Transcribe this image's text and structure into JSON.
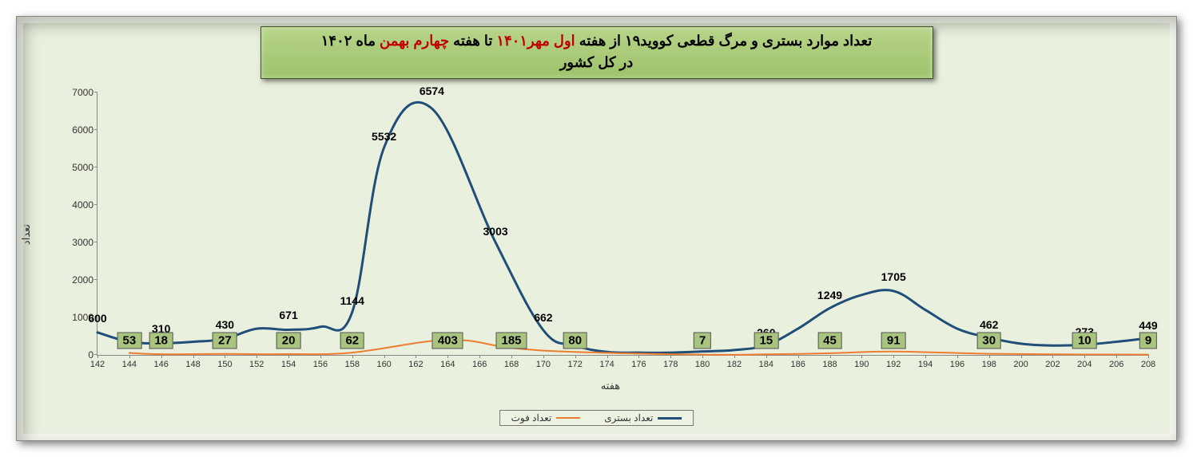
{
  "title": {
    "pre1": "تعداد موارد بستری و مرگ قطعی کووید۱۹ از هفته ",
    "hl1": "اول مهر۱۴۰۱",
    "mid": " تا هفته ",
    "hl2": "چهارم بهمن",
    "post": " ماه ۱۴۰۲",
    "line2": "در کل کشور"
  },
  "chart": {
    "type": "line",
    "background_color": "#e9f0dd",
    "title_box_bg": "#a9c47f",
    "ylim": [
      0,
      7000
    ],
    "ytick_step": 1000,
    "xlim": [
      142,
      208
    ],
    "xtick_step": 2,
    "x_axis_label": "هفته",
    "y_axis_label": "تعداد",
    "series": [
      {
        "name": "تعداد بستری",
        "color": "#1f4e79",
        "line_width": 3,
        "weeks": [
          142,
          146,
          150,
          154,
          158,
          160,
          163,
          167,
          170,
          180,
          184,
          188,
          192,
          198,
          204,
          208
        ],
        "values": [
          600,
          310,
          430,
          671,
          1144,
          5532,
          6574,
          3003,
          662,
          92,
          260,
          1249,
          1705,
          462,
          273,
          449
        ],
        "label_dy": [
          -10,
          -10,
          -10,
          -10,
          -6,
          -6,
          -14,
          -6,
          -8,
          -8,
          -8,
          -8,
          -10,
          -8,
          -8,
          -8
        ],
        "extra_points_weeks": [
          144,
          148,
          152,
          156,
          172,
          174,
          176,
          178,
          182,
          186,
          190,
          194,
          196,
          200,
          202,
          206
        ],
        "extra_points_values": [
          350,
          350,
          700,
          750,
          250,
          80,
          60,
          60,
          130,
          700,
          1600,
          1200,
          700,
          300,
          250,
          350
        ]
      },
      {
        "name": "تعداد فوت",
        "color": "#ed7d31",
        "line_width": 2,
        "weeks": [
          144,
          146,
          150,
          154,
          158,
          164,
          168,
          172,
          180,
          184,
          188,
          192,
          198,
          204,
          208
        ],
        "values": [
          53,
          18,
          27,
          20,
          62,
          403,
          185,
          80,
          7,
          15,
          45,
          91,
          30,
          10,
          9
        ],
        "boxed": true
      }
    ],
    "legend": {
      "items": [
        {
          "label": "تعداد بستری",
          "color": "#1f4e79",
          "width": 3
        },
        {
          "label": "تعداد فوت",
          "color": "#ed7d31",
          "width": 2
        }
      ]
    },
    "axis_color": "#888888",
    "tick_font_size": 12,
    "label_font_size": 14
  }
}
